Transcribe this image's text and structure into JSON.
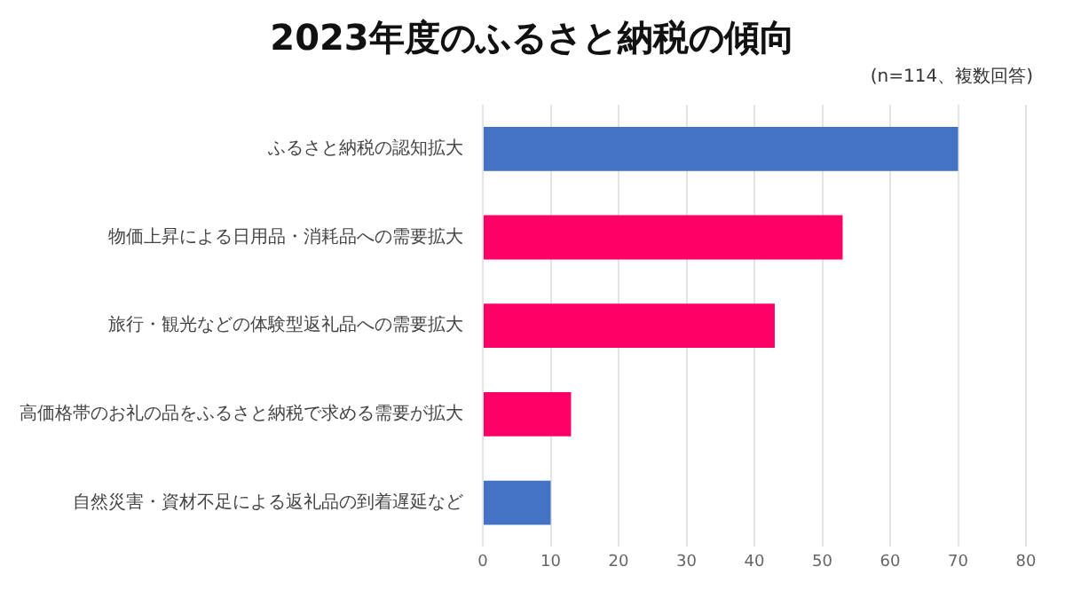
{
  "chart_data": {
    "type": "bar",
    "orientation": "horizontal",
    "title": "2023年度のふるさと納税の傾向",
    "annotations": [
      "(n=114、複数回答)"
    ],
    "categories": [
      "ふるさと納税の認知拡大",
      "物価上昇による日用品・消耗品への需要拡大",
      "旅行・観光などの体験型返礼品への需要拡大",
      "高価格帯のお礼の品をふるさと納税で求める需要が拡大",
      "自然災害・資材不足による返礼品の到着遅延など"
    ],
    "values": [
      70,
      53,
      43,
      13,
      10
    ],
    "colors": [
      "#4472c4",
      "#ff0066",
      "#ff0066",
      "#ff0066",
      "#4472c4"
    ],
    "xlim": [
      0,
      80
    ],
    "xticks": [
      0,
      10,
      20,
      30,
      40,
      50,
      60,
      70,
      80
    ],
    "grid": "x",
    "legend": false
  }
}
